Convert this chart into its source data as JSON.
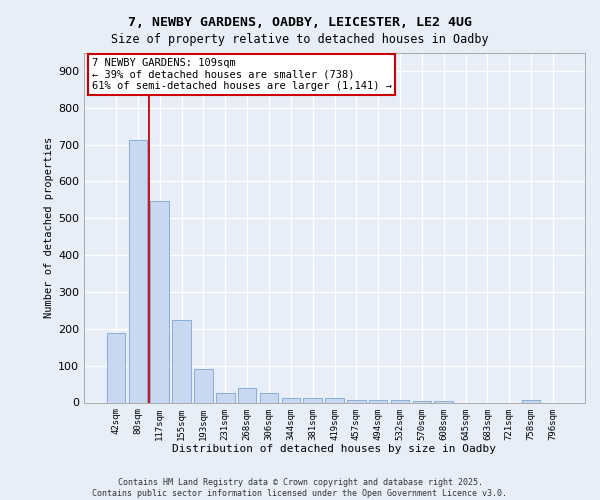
{
  "title1": "7, NEWBY GARDENS, OADBY, LEICESTER, LE2 4UG",
  "title2": "Size of property relative to detached houses in Oadby",
  "xlabel": "Distribution of detached houses by size in Oadby",
  "ylabel": "Number of detached properties",
  "bar_color": "#c8d8f0",
  "bar_edge_color": "#7ba4d4",
  "categories": [
    "42sqm",
    "80sqm",
    "117sqm",
    "155sqm",
    "193sqm",
    "231sqm",
    "268sqm",
    "306sqm",
    "344sqm",
    "381sqm",
    "419sqm",
    "457sqm",
    "494sqm",
    "532sqm",
    "570sqm",
    "608sqm",
    "645sqm",
    "683sqm",
    "721sqm",
    "758sqm",
    "796sqm"
  ],
  "values": [
    190,
    713,
    547,
    225,
    92,
    27,
    39,
    26,
    13,
    12,
    12,
    8,
    7,
    6,
    5,
    3,
    0,
    0,
    0,
    6,
    0
  ],
  "ylim": [
    0,
    950
  ],
  "yticks": [
    0,
    100,
    200,
    300,
    400,
    500,
    600,
    700,
    800,
    900
  ],
  "annotation_text": "7 NEWBY GARDENS: 109sqm\n← 39% of detached houses are smaller (738)\n61% of semi-detached houses are larger (1,141) →",
  "annotation_box_color": "#ffffff",
  "annotation_box_edge": "#cc0000",
  "red_line_x": 1.5,
  "background_color": "#e8eef8",
  "grid_color": "#ffffff",
  "footer1": "Contains HM Land Registry data © Crown copyright and database right 2025.",
  "footer2": "Contains public sector information licensed under the Open Government Licence v3.0."
}
